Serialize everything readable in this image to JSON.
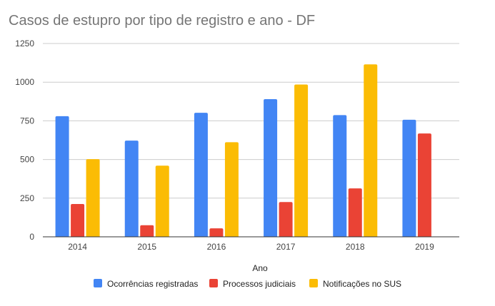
{
  "chart_data": {
    "type": "bar",
    "title": "Casos de estupro por tipo de registro e ano - DF",
    "xlabel": "Ano",
    "ylabel": "",
    "categories": [
      "2014",
      "2015",
      "2016",
      "2017",
      "2018",
      "2019"
    ],
    "series": [
      {
        "name": "Ocorrências registradas",
        "color": "#4285F4",
        "values": [
          780,
          622,
          802,
          890,
          787,
          757
        ]
      },
      {
        "name": "Processos judiciais",
        "color": "#EA4335",
        "values": [
          212,
          75,
          55,
          225,
          313,
          668
        ]
      },
      {
        "name": "Notificações no SUS",
        "color": "#FBBC04",
        "values": [
          502,
          460,
          612,
          985,
          1115,
          null
        ]
      }
    ],
    "ylim": [
      0,
      1250
    ],
    "yticks": [
      0,
      250,
      500,
      750,
      1000,
      1250
    ],
    "grid": true,
    "legend_position": "bottom"
  }
}
